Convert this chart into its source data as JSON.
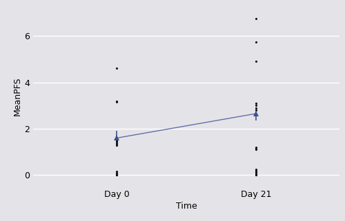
{
  "categories": [
    "Day 0",
    "Day 21"
  ],
  "day0_points": [
    0.0,
    0.0,
    0.0,
    0.05,
    0.1,
    0.15,
    1.3,
    1.35,
    1.4,
    1.45,
    1.5,
    1.55,
    3.15,
    3.2,
    4.6
  ],
  "day21_points": [
    0.0,
    0.0,
    0.05,
    0.1,
    0.15,
    0.2,
    0.25,
    1.1,
    1.15,
    1.2,
    2.8,
    2.9,
    3.0,
    3.1,
    4.9,
    5.75,
    6.75
  ],
  "day0_mean": 1.6,
  "day21_mean": 2.65,
  "day0_ci_low": 1.58,
  "day0_ci_high": 1.9,
  "day21_ci_low": 2.35,
  "day21_ci_high": 2.65,
  "mean_color": "#3d4f8c",
  "line_color": "#6070a8",
  "dot_color": "#111111",
  "bg_color": "#e4e4e8",
  "grid_color": "#ffffff",
  "ylabel": "MeanPFS",
  "xlabel": "Time",
  "yticks": [
    0,
    2,
    4,
    6
  ],
  "ylim": [
    -0.5,
    7.3
  ],
  "xlim": [
    -0.6,
    1.6
  ]
}
